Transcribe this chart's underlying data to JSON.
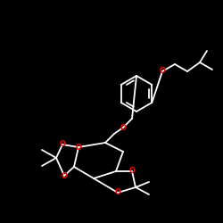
{
  "background": "#000000",
  "bond_color": "#ffffff",
  "heteroatom_color": "#ff0000",
  "line_width": 1.3,
  "figsize": [
    2.5,
    2.5
  ],
  "dpi": 100,
  "xlim": [
    0,
    250
  ],
  "ylim": [
    0,
    250
  ]
}
